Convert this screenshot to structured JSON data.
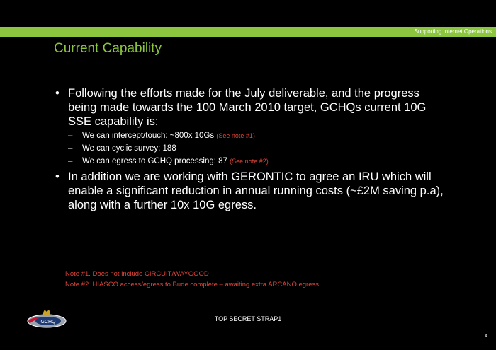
{
  "header": {
    "section_tag": "Supporting Internet Operations"
  },
  "slide": {
    "title": "Current Capability",
    "bullets": [
      "Following the efforts made for the July deliverable, and the progress being made towards the 100 March 2010 target, GCHQs current 10G SSE capability is:",
      "In addition we are working with GERONTIC to agree an IRU which will enable a significant reduction in annual running costs (~£2M saving p.a), along with a further 10x 10G egress."
    ],
    "sub_items": [
      {
        "text": "We can intercept/touch: ~800x 10Gs",
        "note": "(See note #1)"
      },
      {
        "text": "We can cyclic survey: 188",
        "note": ""
      },
      {
        "text": "We can egress to GCHQ processing: 87",
        "note": "(See note #2)"
      }
    ],
    "notes": [
      "Note #1. Does not include CIRCUIT/WAYGOOD",
      "Note #2. HIASCO access/egress to Bude complete – awaiting extra ARCANO egress"
    ]
  },
  "footer": {
    "logo_text": "GCHQ",
    "classification": "TOP SECRET STRAP1",
    "page_number": "4"
  },
  "colors": {
    "background": "#000000",
    "accent_green": "#8cc63f",
    "note_red": "#e0453a",
    "text": "#ffffff"
  }
}
